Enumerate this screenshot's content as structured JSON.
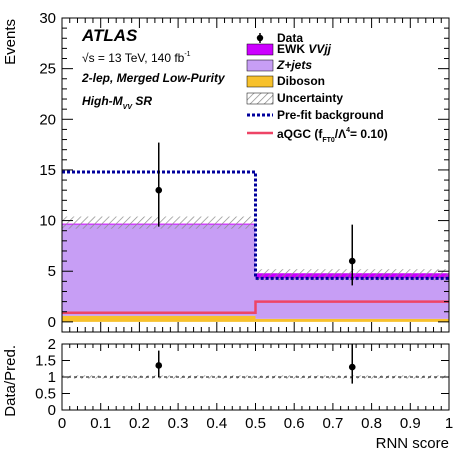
{
  "chart_data": [
    {
      "type": "bar",
      "stacked": true,
      "ylabel": "Events",
      "xlabel": "",
      "xlim": [
        0,
        1
      ],
      "ylim": [
        -1,
        30
      ],
      "yticks": [
        0,
        5,
        10,
        15,
        20,
        25,
        30
      ],
      "bin_edges": [
        0,
        0.5,
        1
      ],
      "series": [
        {
          "name": "Diboson",
          "values": [
            0.6,
            0.3
          ],
          "color": "#f7c12b"
        },
        {
          "name": "Z+jets",
          "values": [
            9.0,
            4.0
          ],
          "color": "#c79ef5"
        },
        {
          "name": "EWK VVjj",
          "values": [
            0.1,
            0.5
          ],
          "color": "#cc00ff"
        }
      ],
      "uncertainty": {
        "name": "Uncertainty",
        "low": [
          9.2,
          4.1
        ],
        "high": [
          10.4,
          5.2
        ]
      },
      "prefit_background": {
        "name": "Pre-fit background",
        "values": [
          14.8,
          4.3
        ],
        "color": "#00009c"
      },
      "aqgc": {
        "label_main": "aQGC (f",
        "label_sub": "FT0",
        "label_mid": "/Λ",
        "label_sup": "4",
        "label_end": "= 0.10)",
        "values": [
          0.9,
          2.0
        ],
        "color": "#ee4466"
      },
      "data": {
        "name": "Data",
        "x": [
          0.25,
          0.75
        ],
        "y": [
          13,
          6
        ],
        "err_low": [
          3.6,
          2.4
        ],
        "err_high": [
          4.7,
          3.6
        ]
      },
      "legend_position": "top-right"
    },
    {
      "type": "scatter",
      "ylabel": "Data/Pred.",
      "xlabel": "RNN score",
      "xlim": [
        0,
        1
      ],
      "ylim": [
        0,
        2
      ],
      "yticks": [
        0,
        0.5,
        1,
        1.5,
        2
      ],
      "xticks": [
        0,
        0.1,
        0.2,
        0.3,
        0.4,
        0.5,
        0.6,
        0.7,
        0.8,
        0.9,
        1
      ],
      "x": [
        0.25,
        0.75
      ],
      "y": [
        1.35,
        1.3
      ],
      "err_low": [
        0.35,
        0.5
      ],
      "err_high": [
        0.45,
        0.75
      ],
      "uncertainty_band": [
        0.95,
        1.05
      ],
      "reference_line": 1
    }
  ],
  "annotations": {
    "experiment": "ATLAS",
    "energy_pre": "√s = 13 TeV, 140 fb",
    "energy_sup": "-1",
    "channel": "2-lep, Merged Low-Purity",
    "region_pre": "High-M",
    "region_sub": "VV",
    "region_post": " SR"
  },
  "legend": {
    "data": "Data",
    "ewk_pre": "EWK ",
    "ewk_it": "VVjj",
    "zjets": "Z+jets",
    "diboson": "Diboson",
    "uncertainty": "Uncertainty",
    "prefit": "Pre-fit background"
  }
}
